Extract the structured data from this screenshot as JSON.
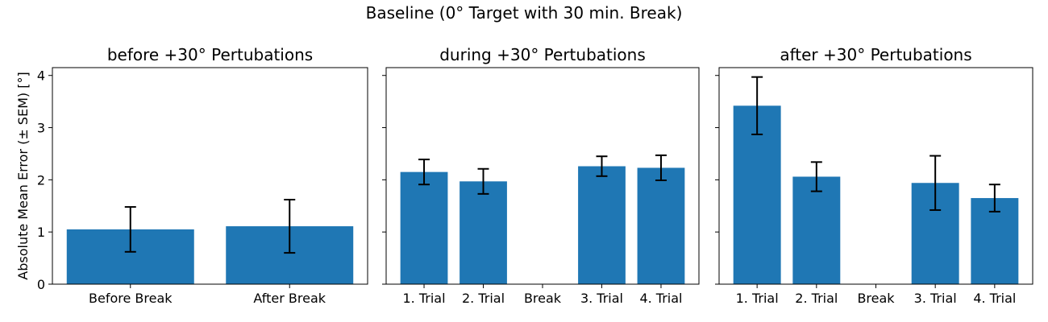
{
  "title": "Baseline (0° Target with 30 min. Break)",
  "chart_data": [
    {
      "type": "bar",
      "title": "before +30° Pertubations",
      "ylabel": "Absolute Mean Error (± SEM) [°]",
      "ylim": [
        0,
        4.15
      ],
      "yticks": [
        0,
        1,
        2,
        3,
        4
      ],
      "categories": [
        "Before Break",
        "After Break"
      ],
      "values": [
        1.05,
        1.11
      ],
      "errors": [
        0.43,
        0.51
      ],
      "color": "#1f77b4"
    },
    {
      "type": "bar",
      "title": "during +30° Pertubations",
      "ylim": [
        0,
        4.15
      ],
      "yticks": [
        0,
        1,
        2,
        3,
        4
      ],
      "categories": [
        "1. Trial",
        "2. Trial",
        "Break",
        "3. Trial",
        "4. Trial"
      ],
      "values": [
        2.15,
        1.97,
        0,
        2.26,
        2.23
      ],
      "errors": [
        0.24,
        0.24,
        null,
        0.19,
        0.24
      ],
      "color": "#1f77b4"
    },
    {
      "type": "bar",
      "title": "after +30° Pertubations",
      "ylim": [
        0,
        4.15
      ],
      "yticks": [
        0,
        1,
        2,
        3,
        4
      ],
      "categories": [
        "1. Trial",
        "2. Trial",
        "Break",
        "3. Trial",
        "4. Trial"
      ],
      "values": [
        3.42,
        2.06,
        0,
        1.94,
        1.65
      ],
      "errors": [
        0.55,
        0.28,
        null,
        0.52,
        0.26
      ],
      "color": "#1f77b4"
    }
  ]
}
